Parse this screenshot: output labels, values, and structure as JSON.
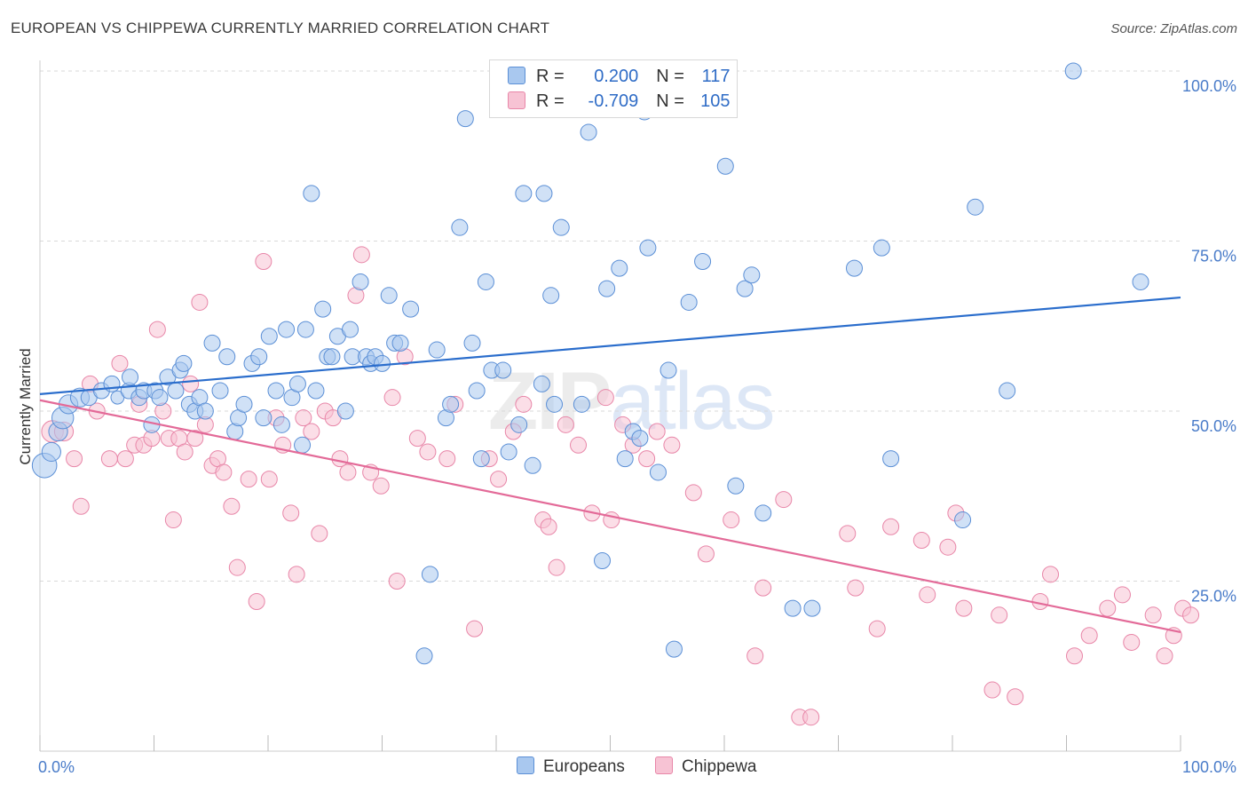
{
  "title": "EUROPEAN VS CHIPPEWA CURRENTLY MARRIED CORRELATION CHART",
  "source": "Source: ZipAtlas.com",
  "watermark": {
    "zip": "ZIP",
    "atlas": "atlas"
  },
  "legend": {
    "rows": [
      {
        "r_label": "R = ",
        "r_value": "0.200",
        "n_label": "N = ",
        "n_value": "117",
        "color": "#8ab4e8"
      },
      {
        "r_label": "R = ",
        "r_value": "-0.709",
        "n_label": "N = ",
        "n_value": "105",
        "color": "#f2a7c1"
      }
    ]
  },
  "bottom_legend": [
    "Europeans",
    "Chippewa"
  ],
  "colors": {
    "europeans_fill": "#a9c8ef",
    "europeans_stroke": "#5b8fd6",
    "europeans_line": "#2a6dcc",
    "chippewa_fill": "#f7c3d4",
    "chippewa_stroke": "#e886a8",
    "chippewa_line": "#e36a98",
    "grid": "#d9d9d9",
    "axis_text": "#4a7cc9"
  },
  "chart_data": {
    "type": "scatter",
    "title": "EUROPEAN VS CHIPPEWA CURRENTLY MARRIED CORRELATION CHART",
    "xlabel": "",
    "ylabel": "Currently Married",
    "xlim": [
      0,
      100
    ],
    "ylim": [
      0,
      100
    ],
    "x_tick_labels": [
      "0.0%",
      "100.0%"
    ],
    "y_ticks": [
      25,
      50,
      75,
      100
    ],
    "y_tick_labels": [
      "25.0%",
      "50.0%",
      "75.0%",
      "100.0%"
    ],
    "grid": "horizontal dashed",
    "legend_position": "top-center",
    "series": [
      {
        "name": "Europeans",
        "trend": {
          "x": [
            0,
            100
          ],
          "y": [
            52.5,
            66.7
          ]
        },
        "points": [
          [
            0.4,
            42,
            16
          ],
          [
            1.0,
            44,
            12
          ],
          [
            1.6,
            47,
            12
          ],
          [
            2.0,
            49,
            14
          ],
          [
            2.5,
            51,
            12
          ],
          [
            3.5,
            52,
            12
          ],
          [
            4.3,
            52,
            10
          ],
          [
            5.4,
            53,
            10
          ],
          [
            6.3,
            54,
            10
          ],
          [
            6.8,
            52,
            8
          ],
          [
            7.8,
            53,
            10
          ],
          [
            7.9,
            55,
            10
          ],
          [
            8.7,
            52,
            10
          ],
          [
            9.1,
            53,
            10
          ],
          [
            9.8,
            48,
            10
          ],
          [
            10.1,
            53,
            10
          ],
          [
            10.5,
            52,
            10
          ],
          [
            11.2,
            55,
            10
          ],
          [
            11.9,
            53,
            10
          ],
          [
            12.3,
            56,
            10
          ],
          [
            12.6,
            57,
            10
          ],
          [
            13.1,
            51,
            10
          ],
          [
            13.6,
            50,
            10
          ],
          [
            14.0,
            52,
            10
          ],
          [
            14.5,
            50,
            10
          ],
          [
            15.1,
            60,
            10
          ],
          [
            15.8,
            53,
            10
          ],
          [
            16.4,
            58,
            10
          ],
          [
            17.1,
            47,
            10
          ],
          [
            17.4,
            49,
            10
          ],
          [
            17.9,
            51,
            10
          ],
          [
            18.6,
            57,
            10
          ],
          [
            19.2,
            58,
            10
          ],
          [
            19.6,
            49,
            10
          ],
          [
            20.1,
            61,
            10
          ],
          [
            20.7,
            53,
            10
          ],
          [
            21.2,
            48,
            10
          ],
          [
            21.6,
            62,
            10
          ],
          [
            22.1,
            52,
            10
          ],
          [
            22.6,
            54,
            10
          ],
          [
            23.0,
            45,
            10
          ],
          [
            23.3,
            62,
            10
          ],
          [
            23.8,
            82,
            10
          ],
          [
            24.2,
            53,
            10
          ],
          [
            24.8,
            65,
            10
          ],
          [
            25.2,
            58,
            10
          ],
          [
            25.6,
            58,
            10
          ],
          [
            26.1,
            61,
            10
          ],
          [
            26.8,
            50,
            10
          ],
          [
            27.2,
            62,
            10
          ],
          [
            27.4,
            58,
            10
          ],
          [
            28.1,
            69,
            10
          ],
          [
            28.6,
            58,
            10
          ],
          [
            29.0,
            57,
            10
          ],
          [
            29.4,
            58,
            10
          ],
          [
            30.0,
            57,
            10
          ],
          [
            30.6,
            67,
            10
          ],
          [
            31.1,
            60,
            10
          ],
          [
            31.6,
            60,
            10
          ],
          [
            32.5,
            65,
            10
          ],
          [
            33.7,
            14,
            10
          ],
          [
            34.2,
            26,
            10
          ],
          [
            34.8,
            59,
            10
          ],
          [
            35.6,
            49,
            10
          ],
          [
            36.0,
            51,
            10
          ],
          [
            36.8,
            77,
            10
          ],
          [
            37.3,
            93,
            10
          ],
          [
            37.9,
            60,
            10
          ],
          [
            38.3,
            53,
            10
          ],
          [
            38.7,
            43,
            10
          ],
          [
            39.1,
            69,
            10
          ],
          [
            39.6,
            56,
            10
          ],
          [
            40.6,
            56,
            10
          ],
          [
            41.1,
            44,
            10
          ],
          [
            42.0,
            48,
            10
          ],
          [
            42.4,
            82,
            10
          ],
          [
            43.2,
            42,
            10
          ],
          [
            44.0,
            54,
            10
          ],
          [
            44.2,
            82,
            10
          ],
          [
            44.8,
            67,
            10
          ],
          [
            45.1,
            51,
            10
          ],
          [
            45.7,
            77,
            10
          ],
          [
            47.5,
            51,
            10
          ],
          [
            48.1,
            91,
            10
          ],
          [
            49.3,
            28,
            10
          ],
          [
            49.7,
            68,
            10
          ],
          [
            50.1,
            100,
            10
          ],
          [
            50.8,
            71,
            10
          ],
          [
            51.3,
            43,
            10
          ],
          [
            52.0,
            47,
            10
          ],
          [
            52.6,
            46,
            10
          ],
          [
            53.0,
            94,
            10
          ],
          [
            53.3,
            74,
            10
          ],
          [
            54.2,
            41,
            10
          ],
          [
            55.1,
            56,
            10
          ],
          [
            55.6,
            15,
            10
          ],
          [
            56.9,
            66,
            10
          ],
          [
            58.1,
            72,
            10
          ],
          [
            60.1,
            86,
            10
          ],
          [
            61.0,
            39,
            10
          ],
          [
            61.8,
            68,
            10
          ],
          [
            62.4,
            70,
            10
          ],
          [
            63.4,
            35,
            10
          ],
          [
            66.0,
            21,
            10
          ],
          [
            67.7,
            21,
            10
          ],
          [
            71.4,
            71,
            10
          ],
          [
            73.8,
            74,
            10
          ],
          [
            74.6,
            43,
            10
          ],
          [
            80.9,
            34,
            10
          ],
          [
            82.0,
            80,
            10
          ],
          [
            84.8,
            53,
            10
          ],
          [
            90.6,
            100,
            10
          ],
          [
            96.5,
            69,
            10
          ]
        ]
      },
      {
        "name": "Chippewa",
        "trend": {
          "x": [
            0,
            100
          ],
          "y": [
            51.6,
            17.5
          ]
        },
        "points": [
          [
            1.1,
            47,
            14
          ],
          [
            2.1,
            47,
            12
          ],
          [
            3.0,
            43,
            10
          ],
          [
            3.6,
            36,
            10
          ],
          [
            4.4,
            54,
            10
          ],
          [
            5.0,
            50,
            10
          ],
          [
            6.1,
            43,
            10
          ],
          [
            7.0,
            57,
            10
          ],
          [
            7.5,
            43,
            10
          ],
          [
            8.3,
            45,
            10
          ],
          [
            8.7,
            51,
            10
          ],
          [
            9.1,
            45,
            10
          ],
          [
            9.8,
            46,
            10
          ],
          [
            10.3,
            62,
            10
          ],
          [
            10.8,
            50,
            10
          ],
          [
            11.3,
            46,
            10
          ],
          [
            11.7,
            34,
            10
          ],
          [
            12.2,
            46,
            10
          ],
          [
            12.7,
            44,
            10
          ],
          [
            13.2,
            54,
            10
          ],
          [
            13.6,
            46,
            10
          ],
          [
            14.0,
            66,
            10
          ],
          [
            14.5,
            48,
            10
          ],
          [
            15.1,
            42,
            10
          ],
          [
            15.6,
            43,
            10
          ],
          [
            16.1,
            41,
            10
          ],
          [
            16.8,
            36,
            10
          ],
          [
            17.3,
            27,
            10
          ],
          [
            18.3,
            40,
            10
          ],
          [
            19.0,
            22,
            10
          ],
          [
            19.6,
            72,
            10
          ],
          [
            20.1,
            40,
            10
          ],
          [
            20.7,
            49,
            10
          ],
          [
            21.3,
            45,
            10
          ],
          [
            22.0,
            35,
            10
          ],
          [
            22.5,
            26,
            10
          ],
          [
            23.1,
            49,
            10
          ],
          [
            23.8,
            47,
            10
          ],
          [
            24.5,
            32,
            10
          ],
          [
            25.0,
            50,
            10
          ],
          [
            25.7,
            49,
            10
          ],
          [
            26.3,
            43,
            10
          ],
          [
            27.0,
            41,
            10
          ],
          [
            27.7,
            67,
            10
          ],
          [
            28.2,
            73,
            10
          ],
          [
            29.0,
            41,
            10
          ],
          [
            29.9,
            39,
            10
          ],
          [
            30.9,
            52,
            10
          ],
          [
            31.3,
            25,
            10
          ],
          [
            32.0,
            58,
            10
          ],
          [
            33.1,
            46,
            10
          ],
          [
            34.0,
            44,
            10
          ],
          [
            35.7,
            43,
            10
          ],
          [
            36.4,
            51,
            10
          ],
          [
            38.1,
            18,
            10
          ],
          [
            39.4,
            43,
            10
          ],
          [
            40.2,
            40,
            10
          ],
          [
            41.5,
            47,
            10
          ],
          [
            42.4,
            51,
            10
          ],
          [
            44.1,
            34,
            10
          ],
          [
            44.6,
            33,
            10
          ],
          [
            45.3,
            27,
            10
          ],
          [
            46.1,
            48,
            10
          ],
          [
            47.2,
            45,
            10
          ],
          [
            48.4,
            35,
            10
          ],
          [
            49.6,
            52,
            10
          ],
          [
            50.1,
            34,
            10
          ],
          [
            51.1,
            48,
            10
          ],
          [
            52.0,
            45,
            10
          ],
          [
            53.2,
            43,
            10
          ],
          [
            54.1,
            47,
            10
          ],
          [
            55.4,
            45,
            10
          ],
          [
            57.3,
            38,
            10
          ],
          [
            58.4,
            29,
            10
          ],
          [
            60.6,
            34,
            10
          ],
          [
            62.7,
            14,
            10
          ],
          [
            63.4,
            24,
            10
          ],
          [
            65.2,
            37,
            10
          ],
          [
            66.6,
            5,
            10
          ],
          [
            67.6,
            5,
            10
          ],
          [
            70.8,
            32,
            10
          ],
          [
            71.5,
            24,
            10
          ],
          [
            73.4,
            18,
            10
          ],
          [
            74.6,
            33,
            10
          ],
          [
            77.3,
            31,
            10
          ],
          [
            77.8,
            23,
            10
          ],
          [
            79.6,
            30,
            10
          ],
          [
            80.3,
            35,
            10
          ],
          [
            81.0,
            21,
            10
          ],
          [
            83.5,
            9,
            10
          ],
          [
            84.1,
            20,
            10
          ],
          [
            85.5,
            8,
            10
          ],
          [
            87.7,
            22,
            10
          ],
          [
            88.6,
            26,
            10
          ],
          [
            90.7,
            14,
            10
          ],
          [
            92.0,
            17,
            10
          ],
          [
            93.6,
            21,
            10
          ],
          [
            94.9,
            23,
            10
          ],
          [
            95.7,
            16,
            10
          ],
          [
            97.6,
            20,
            10
          ],
          [
            98.6,
            14,
            10
          ],
          [
            99.4,
            17,
            10
          ],
          [
            100.2,
            21,
            10
          ],
          [
            100.9,
            20,
            10
          ]
        ]
      }
    ]
  }
}
